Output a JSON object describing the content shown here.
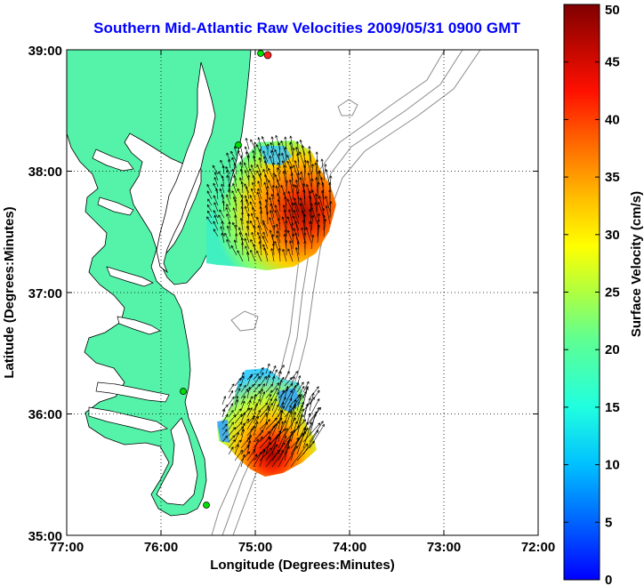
{
  "title": "Southern Mid-Atlantic Raw Velocities 2009/05/31 0900 GMT",
  "x_axis": {
    "label": "Longitude (Degrees:Minutes)",
    "ticks": [
      "77:00",
      "76:00",
      "75:00",
      "74:00",
      "73:00",
      "72:00"
    ]
  },
  "y_axis": {
    "label": "Latitude (Degrees:Minutes)",
    "ticks": [
      "39:00",
      "38:00",
      "37:00",
      "36:00",
      "35:00"
    ]
  },
  "colorbar": {
    "label": "Surface Velocity (cm/s)",
    "ticks": [
      "0",
      "5",
      "10",
      "15",
      "20",
      "25",
      "30",
      "35",
      "40",
      "45",
      "50"
    ],
    "range": [
      0,
      50
    ],
    "colormap": "jet"
  },
  "colors": {
    "title": "#0000ff",
    "land": "#55f3aa",
    "coastline": "#000000",
    "bathymetry": "#8c8c8c",
    "site_marker": "#00dd00",
    "site_marker_red": "#ff2020"
  },
  "grid": "dotted"
}
